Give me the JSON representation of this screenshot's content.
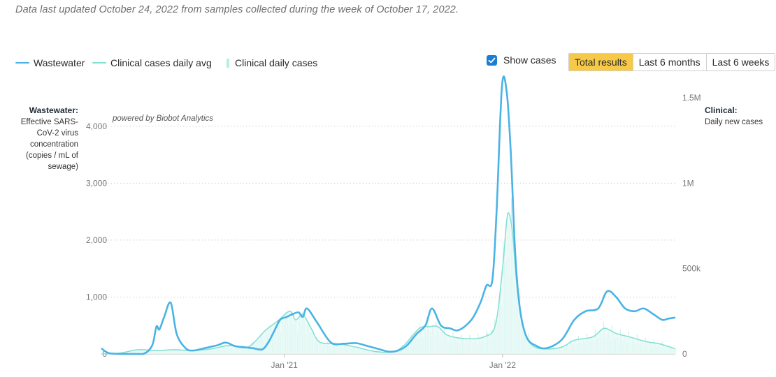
{
  "header": {
    "updated_text": "Data last updated October 24, 2022 from samples collected during the week of October 17, 2022."
  },
  "legend": {
    "wastewater": "Wastewater",
    "clinical_avg": "Clinical cases daily avg",
    "clinical_daily": "Clinical daily cases"
  },
  "controls": {
    "show_cases_label": "Show cases",
    "show_cases_checked": true,
    "range_buttons": [
      "Total results",
      "Last 6 months",
      "Last 6 weeks"
    ],
    "active_range": "Total results"
  },
  "axes": {
    "left_title": "Wastewater:",
    "left_subtitle": "Effective SARS-CoV-2 virus concentration (copies / mL of sewage)",
    "right_title": "Clinical:",
    "right_subtitle": "Daily new cases"
  },
  "watermark": "powered by Biobot Analytics",
  "colors": {
    "wastewater": "#4ab3e6",
    "clinical_avg": "#86e0d4",
    "clinical_bars": "#c8f1ec",
    "grid": "#cfcfcf",
    "active_button": "#f7c948",
    "checkbox": "#1a7fd4"
  },
  "chart_data": {
    "type": "line",
    "x_range": [
      "2020-03-01",
      "2022-10-17"
    ],
    "x_ticks": [
      {
        "date": "2021-01-01",
        "label": "Jan '21"
      },
      {
        "date": "2022-01-01",
        "label": "Jan '22"
      }
    ],
    "y_left": {
      "range": [
        0,
        4500
      ],
      "ticks": [
        {
          "value": 0,
          "label": "0"
        },
        {
          "value": 1000,
          "label": "1,000"
        },
        {
          "value": 2000,
          "label": "2,000"
        },
        {
          "value": 3000,
          "label": "3,000"
        },
        {
          "value": 4000,
          "label": "4,000"
        }
      ]
    },
    "y_right": {
      "range": [
        0,
        1500000
      ],
      "ticks": [
        {
          "value": 0,
          "label": "0"
        },
        {
          "value": 500000,
          "label": "500k"
        },
        {
          "value": 1000000,
          "label": "1M"
        },
        {
          "value": 1500000,
          "label": "1.5M"
        }
      ]
    },
    "grid": true,
    "series": [
      {
        "name": "Wastewater",
        "axis": "left",
        "points": [
          [
            "2020-03-01",
            100
          ],
          [
            "2020-03-15",
            10
          ],
          [
            "2020-04-15",
            0
          ],
          [
            "2020-05-10",
            0
          ],
          [
            "2020-05-25",
            150
          ],
          [
            "2020-06-01",
            480
          ],
          [
            "2020-06-06",
            430
          ],
          [
            "2020-06-14",
            650
          ],
          [
            "2020-06-25",
            900
          ],
          [
            "2020-07-05",
            350
          ],
          [
            "2020-07-20",
            100
          ],
          [
            "2020-08-01",
            60
          ],
          [
            "2020-08-20",
            100
          ],
          [
            "2020-09-10",
            150
          ],
          [
            "2020-09-25",
            200
          ],
          [
            "2020-10-10",
            140
          ],
          [
            "2020-10-25",
            120
          ],
          [
            "2020-11-10",
            100
          ],
          [
            "2020-11-25",
            80
          ],
          [
            "2020-12-05",
            200
          ],
          [
            "2020-12-15",
            400
          ],
          [
            "2020-12-25",
            600
          ],
          [
            "2021-01-05",
            650
          ],
          [
            "2021-01-15",
            700
          ],
          [
            "2021-01-25",
            730
          ],
          [
            "2021-02-01",
            650
          ],
          [
            "2021-02-08",
            800
          ],
          [
            "2021-02-25",
            550
          ],
          [
            "2021-03-20",
            200
          ],
          [
            "2021-04-10",
            180
          ],
          [
            "2021-05-01",
            190
          ],
          [
            "2021-05-20",
            140
          ],
          [
            "2021-06-10",
            80
          ],
          [
            "2021-06-25",
            40
          ],
          [
            "2021-07-10",
            60
          ],
          [
            "2021-07-25",
            150
          ],
          [
            "2021-08-10",
            350
          ],
          [
            "2021-08-25",
            500
          ],
          [
            "2021-09-05",
            800
          ],
          [
            "2021-09-20",
            500
          ],
          [
            "2021-10-05",
            450
          ],
          [
            "2021-10-20",
            420
          ],
          [
            "2021-11-10",
            600
          ],
          [
            "2021-11-25",
            900
          ],
          [
            "2021-12-05",
            1200
          ],
          [
            "2021-12-15",
            1300
          ],
          [
            "2021-12-22",
            2500
          ],
          [
            "2021-12-31",
            4700
          ],
          [
            "2022-01-08",
            4600
          ],
          [
            "2022-01-15",
            3500
          ],
          [
            "2022-01-22",
            1800
          ],
          [
            "2022-01-30",
            800
          ],
          [
            "2022-02-10",
            300
          ],
          [
            "2022-02-25",
            150
          ],
          [
            "2022-03-15",
            100
          ],
          [
            "2022-04-10",
            250
          ],
          [
            "2022-05-01",
            600
          ],
          [
            "2022-05-20",
            750
          ],
          [
            "2022-06-10",
            800
          ],
          [
            "2022-06-25",
            1100
          ],
          [
            "2022-07-10",
            1000
          ],
          [
            "2022-07-25",
            800
          ],
          [
            "2022-08-10",
            750
          ],
          [
            "2022-08-25",
            800
          ],
          [
            "2022-09-10",
            700
          ],
          [
            "2022-09-25",
            600
          ],
          [
            "2022-10-05",
            620
          ],
          [
            "2022-10-17",
            640
          ]
        ]
      },
      {
        "name": "Clinical cases daily avg",
        "axis": "right",
        "points": [
          [
            "2020-03-01",
            0
          ],
          [
            "2020-04-01",
            5000
          ],
          [
            "2020-05-01",
            25000
          ],
          [
            "2020-06-01",
            20000
          ],
          [
            "2020-07-01",
            25000
          ],
          [
            "2020-08-01",
            20000
          ],
          [
            "2020-09-01",
            30000
          ],
          [
            "2020-10-01",
            50000
          ],
          [
            "2020-11-01",
            40000
          ],
          [
            "2020-12-01",
            140000
          ],
          [
            "2020-12-20",
            190000
          ],
          [
            "2021-01-10",
            250000
          ],
          [
            "2021-01-20",
            200000
          ],
          [
            "2021-02-01",
            230000
          ],
          [
            "2021-02-15",
            150000
          ],
          [
            "2021-03-01",
            70000
          ],
          [
            "2021-04-01",
            60000
          ],
          [
            "2021-05-01",
            40000
          ],
          [
            "2021-06-01",
            15000
          ],
          [
            "2021-07-01",
            12000
          ],
          [
            "2021-07-20",
            50000
          ],
          [
            "2021-08-15",
            150000
          ],
          [
            "2021-09-01",
            160000
          ],
          [
            "2021-09-15",
            160000
          ],
          [
            "2021-10-01",
            110000
          ],
          [
            "2021-11-01",
            90000
          ],
          [
            "2021-12-01",
            100000
          ],
          [
            "2021-12-20",
            170000
          ],
          [
            "2022-01-01",
            500000
          ],
          [
            "2022-01-08",
            780000
          ],
          [
            "2022-01-12",
            820000
          ],
          [
            "2022-01-18",
            700000
          ],
          [
            "2022-01-25",
            400000
          ],
          [
            "2022-02-05",
            150000
          ],
          [
            "2022-02-20",
            50000
          ],
          [
            "2022-03-15",
            30000
          ],
          [
            "2022-04-10",
            40000
          ],
          [
            "2022-05-01",
            80000
          ],
          [
            "2022-06-01",
            100000
          ],
          [
            "2022-06-20",
            150000
          ],
          [
            "2022-07-10",
            120000
          ],
          [
            "2022-08-01",
            100000
          ],
          [
            "2022-09-01",
            70000
          ],
          [
            "2022-09-20",
            60000
          ],
          [
            "2022-10-17",
            30000
          ]
        ]
      }
    ]
  }
}
